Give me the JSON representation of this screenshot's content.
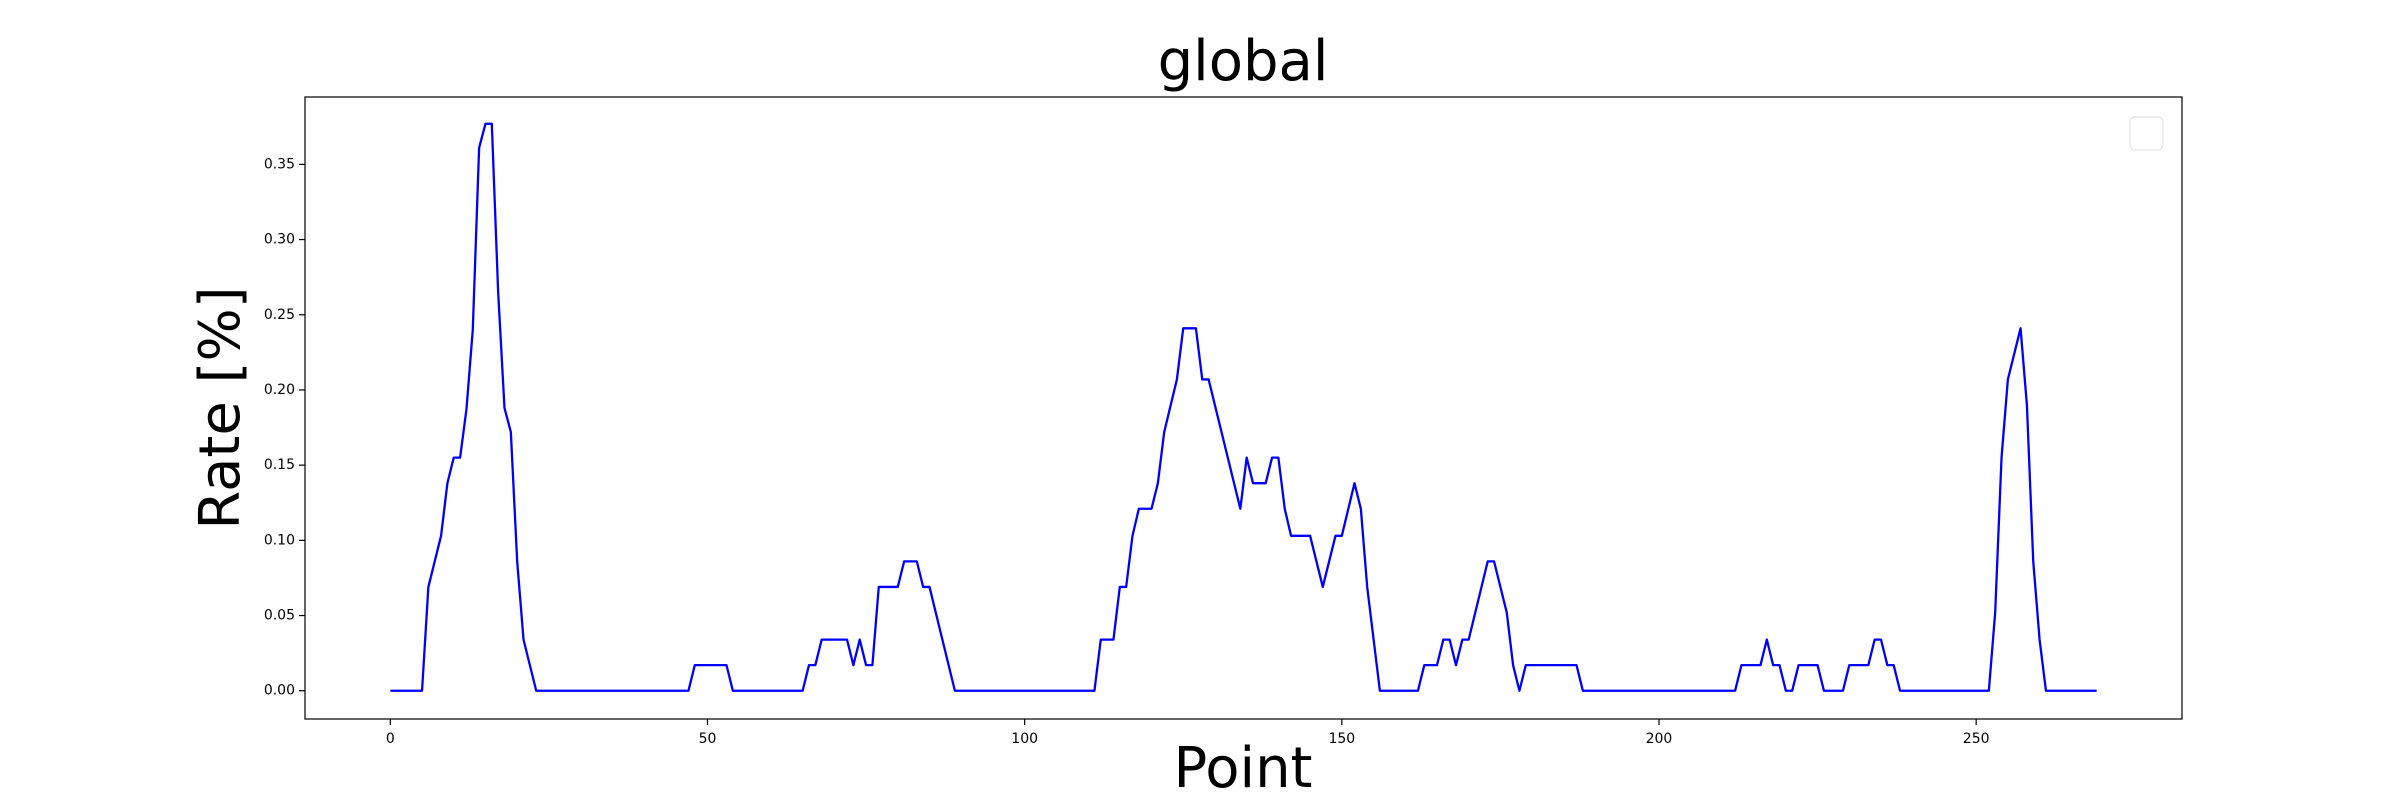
{
  "chart_data": {
    "type": "line",
    "title": "global",
    "x_label": "Point",
    "y_label": "Rate [%]",
    "xlim": [
      -13.45,
      282.45
    ],
    "xticks": [
      0,
      50,
      100,
      150,
      200,
      250
    ],
    "ylim": [
      -0.0188,
      0.3948
    ],
    "yticks": [
      {
        "value": 0,
        "label": "0.00"
      },
      {
        "value": 0.05,
        "label": "0.05"
      },
      {
        "value": 0.1,
        "label": "0.10"
      },
      {
        "value": 0.15,
        "label": "0.15"
      },
      {
        "value": 0.2,
        "label": "0.20"
      },
      {
        "value": 0.25,
        "label": "0.25"
      },
      {
        "value": 0.3,
        "label": "0.30"
      },
      {
        "value": 0.35,
        "label": "0.35"
      }
    ],
    "x": [
      0,
      5,
      6,
      8,
      9,
      10,
      11,
      12,
      13,
      14,
      15,
      16,
      17,
      18,
      19,
      20,
      21,
      23,
      47,
      48,
      53,
      54,
      65,
      66,
      67,
      68,
      72,
      73,
      74,
      75,
      76,
      77,
      80,
      81,
      83,
      84,
      85,
      89,
      111,
      112,
      114,
      115,
      116,
      117,
      118,
      120,
      121,
      122,
      124,
      125,
      127,
      128,
      129,
      134,
      135,
      136,
      138,
      139,
      140,
      141,
      142,
      145,
      147,
      149,
      150,
      152,
      153,
      154,
      156,
      162,
      163,
      165,
      166,
      167,
      168,
      169,
      170,
      173,
      174,
      176,
      177,
      178,
      179,
      187,
      188,
      212,
      213,
      216,
      217,
      218,
      219,
      220,
      221,
      222,
      225,
      226,
      229,
      230,
      233,
      234,
      235,
      236,
      237,
      238,
      252,
      253,
      254,
      255,
      257,
      258,
      259,
      260,
      261,
      269
    ],
    "series": [
      {
        "color": "#0000ff",
        "values": [
          0,
          0,
          0.069,
          0.103,
          0.138,
          0.155,
          0.155,
          0.187,
          0.24,
          0.361,
          0.377,
          0.377,
          0.265,
          0.188,
          0.172,
          0.086,
          0.034,
          0,
          0,
          0.017,
          0.017,
          0,
          0,
          0.017,
          0.017,
          0.034,
          0.034,
          0.017,
          0.034,
          0.017,
          0.017,
          0.069,
          0.069,
          0.086,
          0.086,
          0.069,
          0.069,
          0,
          0,
          0.034,
          0.034,
          0.069,
          0.069,
          0.103,
          0.121,
          0.121,
          0.138,
          0.172,
          0.207,
          0.241,
          0.241,
          0.207,
          0.207,
          0.121,
          0.155,
          0.138,
          0.138,
          0.155,
          0.155,
          0.121,
          0.103,
          0.103,
          0.069,
          0.103,
          0.103,
          0.138,
          0.121,
          0.069,
          0,
          0,
          0.017,
          0.017,
          0.034,
          0.034,
          0.017,
          0.034,
          0.034,
          0.086,
          0.086,
          0.052,
          0.017,
          0,
          0.017,
          0.017,
          0,
          0,
          0.017,
          0.017,
          0.034,
          0.017,
          0.017,
          0,
          0,
          0.017,
          0.017,
          0,
          0,
          0.017,
          0.017,
          0.034,
          0.034,
          0.017,
          0.017,
          0,
          0,
          0.052,
          0.155,
          0.207,
          0.241,
          0.19,
          0.086,
          0.034,
          0,
          0
        ]
      }
    ]
  }
}
